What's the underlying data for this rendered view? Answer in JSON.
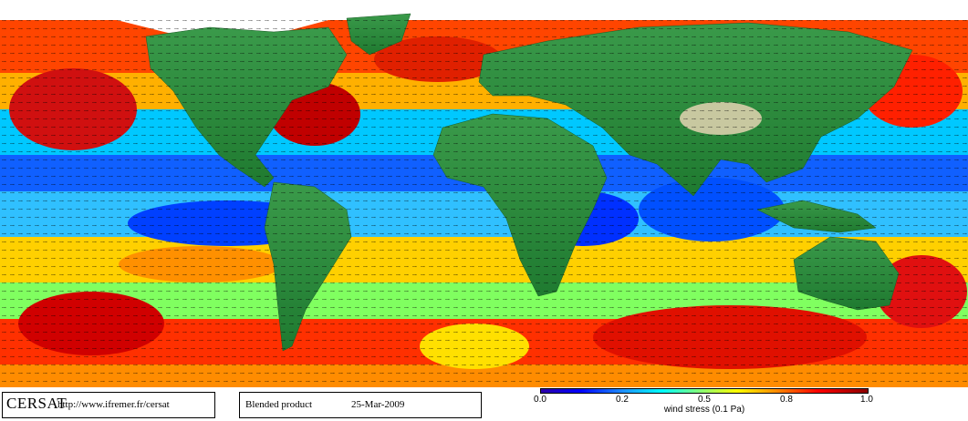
{
  "footer": {
    "logo": "CERSAT",
    "url": "http://www.ifremer.fr/cersat",
    "product": "Blended product",
    "date": "25-Mar-2009"
  },
  "colorbar": {
    "ticks": [
      "0.0",
      "0.2",
      "0.5",
      "0.8",
      "1.0"
    ],
    "title": "wind stress (0.1 Pa)"
  },
  "colors": {
    "ocean_low": "#0000ff",
    "ocean_mid": "#ffff00",
    "ocean_high": "#ff0000",
    "land": "#2e8b3a",
    "ice": "#ffffff"
  }
}
